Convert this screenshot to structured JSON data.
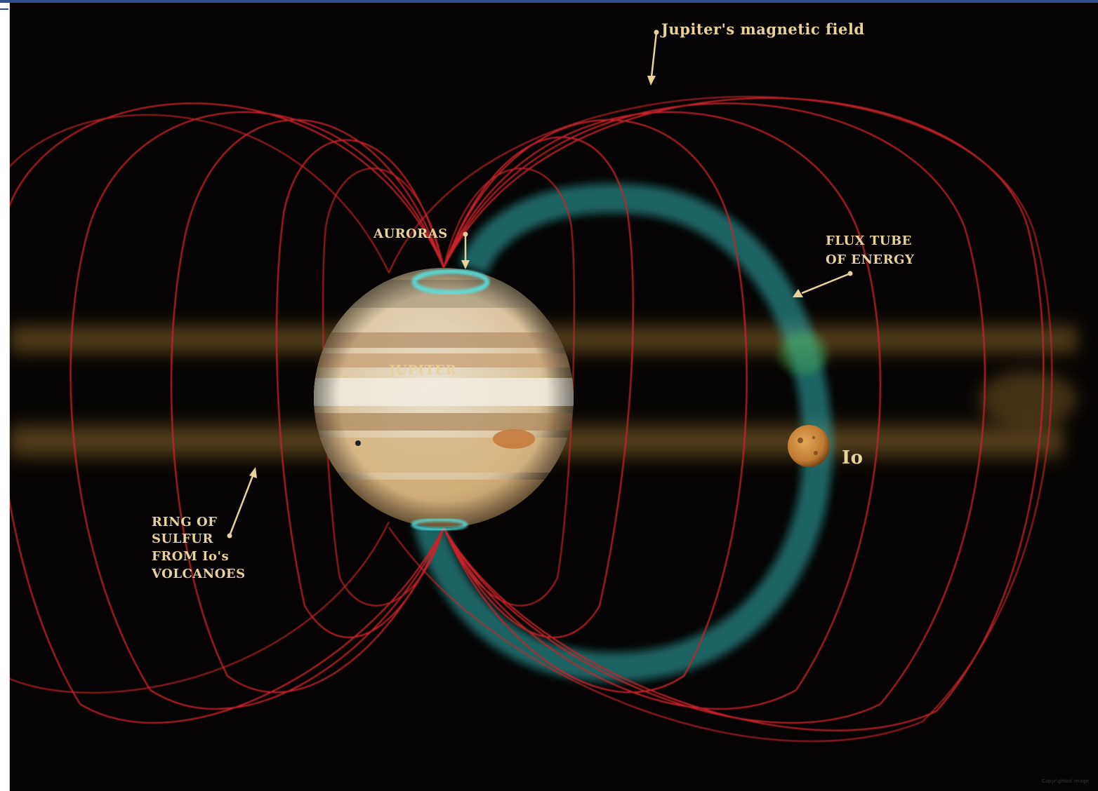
{
  "labels": {
    "magnetic_field": "Jupiter's magnetic field",
    "auroras": "AURORAS",
    "flux_tube_line1": "FLUX TUBE",
    "flux_tube_line2": "OF ENERGY",
    "jupiter": "JUPITER",
    "io": "Io",
    "ring_line1": "RING OF",
    "ring_line2": "SULFUR",
    "ring_line3": "FROM Io's",
    "ring_line4": "VOLCANOES"
  },
  "colors": {
    "field_lines": "#c8242c",
    "flux_tube": "#2fb3b0",
    "sulfur_ring": "#b88a3a",
    "label": "#e7d29a",
    "background": "#050303",
    "window_accent": "#2f4f8f"
  },
  "watermark": "Copyrighted image"
}
